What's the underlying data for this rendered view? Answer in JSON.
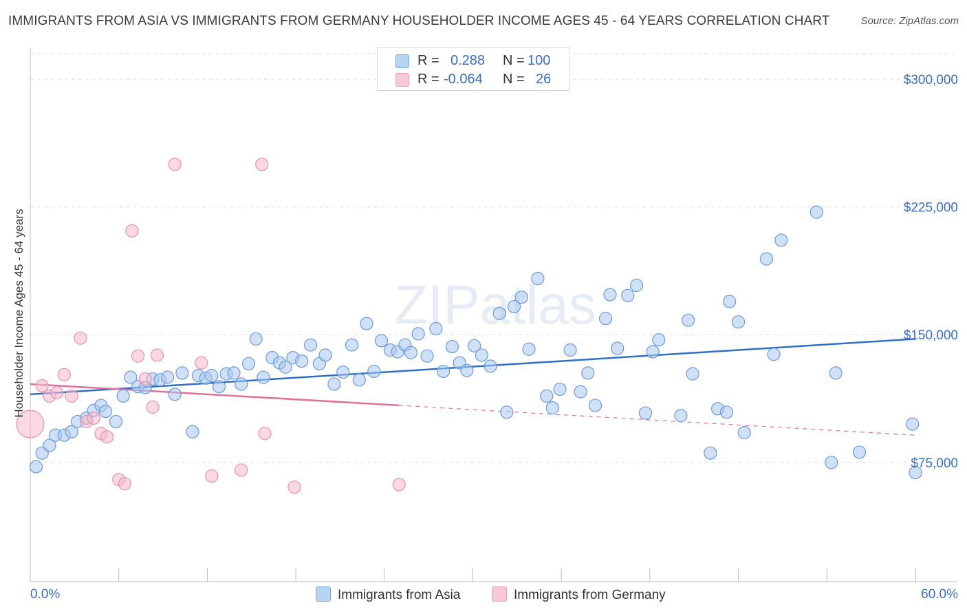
{
  "title": "IMMIGRANTS FROM ASIA VS IMMIGRANTS FROM GERMANY HOUSEHOLDER INCOME AGES 45 - 64 YEARS CORRELATION CHART",
  "source": "Source: ZipAtlas.com",
  "watermark": "ZIPatlas",
  "legend_top": {
    "asia": {
      "r_label": "R =",
      "r_value": "0.288",
      "n_label": "N =",
      "n_value": "100"
    },
    "germany": {
      "r_label": "R =",
      "r_value": "-0.064",
      "n_label": "N =",
      "n_value": "26"
    }
  },
  "colors": {
    "asia_fill": "#a9c8f0",
    "asia_stroke": "#6b9ad8",
    "asia_line": "#2f6fc6",
    "germany_fill": "#f7b8cb",
    "germany_stroke": "#e891ad",
    "germany_line": "#e0709a",
    "axis_text": "#3a6fc4",
    "grid": "#dddddd"
  },
  "chart_data": {
    "type": "scatter",
    "title": "IMMIGRANTS FROM ASIA VS IMMIGRANTS FROM GERMANY HOUSEHOLDER INCOME AGES 45 - 64 YEARS CORRELATION CHART",
    "xlabel": "",
    "ylabel": "Householder Income Ages 45 - 64 years",
    "xlim": [
      0,
      60
    ],
    "ylim": [
      5000,
      315000
    ],
    "x_tick_labels": [
      "0.0%",
      "60.0%"
    ],
    "y_ticks": [
      75000,
      150000,
      225000,
      300000
    ],
    "y_tick_labels": [
      "$75,000",
      "$150,000",
      "$225,000",
      "$300,000"
    ],
    "grid": true,
    "legend_position": "bottom",
    "series": [
      {
        "name": "Immigrants from Asia",
        "r": 0.288,
        "n": 100,
        "trend": {
          "x": [
            0,
            60
          ],
          "y": [
            115000,
            147500
          ],
          "dashed_from": null
        },
        "points": [
          [
            0.4,
            72500
          ],
          [
            0.8,
            80500
          ],
          [
            1.3,
            85000
          ],
          [
            1.7,
            91000
          ],
          [
            2.3,
            91000
          ],
          [
            2.8,
            93000
          ],
          [
            3.2,
            99000
          ],
          [
            3.8,
            101000
          ],
          [
            4.3,
            105500
          ],
          [
            4.8,
            108500
          ],
          [
            5.1,
            105000
          ],
          [
            5.8,
            99000
          ],
          [
            6.3,
            114000
          ],
          [
            6.8,
            125000
          ],
          [
            7.3,
            119500
          ],
          [
            7.8,
            119000
          ],
          [
            8.3,
            124000
          ],
          [
            8.8,
            123500
          ],
          [
            9.3,
            125000
          ],
          [
            9.8,
            115000
          ],
          [
            10.3,
            127500
          ],
          [
            11.0,
            93000
          ],
          [
            11.4,
            126000
          ],
          [
            11.9,
            124500
          ],
          [
            12.3,
            126000
          ],
          [
            12.8,
            119500
          ],
          [
            13.3,
            127000
          ],
          [
            13.8,
            127500
          ],
          [
            14.3,
            121000
          ],
          [
            14.8,
            133000
          ],
          [
            15.3,
            147500
          ],
          [
            15.8,
            125000
          ],
          [
            16.4,
            136500
          ],
          [
            16.9,
            133500
          ],
          [
            17.3,
            131000
          ],
          [
            17.8,
            136500
          ],
          [
            18.4,
            134500
          ],
          [
            19.0,
            144000
          ],
          [
            19.6,
            133000
          ],
          [
            20.0,
            138000
          ],
          [
            20.6,
            121000
          ],
          [
            21.2,
            128000
          ],
          [
            21.8,
            144000
          ],
          [
            22.3,
            123500
          ],
          [
            22.8,
            156500
          ],
          [
            23.3,
            128500
          ],
          [
            23.8,
            146500
          ],
          [
            24.4,
            141000
          ],
          [
            24.9,
            140000
          ],
          [
            25.4,
            144000
          ],
          [
            25.8,
            139500
          ],
          [
            26.3,
            150500
          ],
          [
            26.9,
            137500
          ],
          [
            27.5,
            153500
          ],
          [
            28.0,
            128500
          ],
          [
            28.6,
            143000
          ],
          [
            29.1,
            133500
          ],
          [
            29.6,
            129000
          ],
          [
            30.1,
            143500
          ],
          [
            30.6,
            138000
          ],
          [
            31.2,
            131500
          ],
          [
            31.8,
            162500
          ],
          [
            32.3,
            104500
          ],
          [
            32.8,
            166500
          ],
          [
            33.3,
            172000
          ],
          [
            33.8,
            141500
          ],
          [
            34.4,
            183000
          ],
          [
            35.0,
            114000
          ],
          [
            35.4,
            107000
          ],
          [
            35.9,
            118000
          ],
          [
            36.6,
            141000
          ],
          [
            37.3,
            116500
          ],
          [
            37.8,
            127500
          ],
          [
            38.3,
            108500
          ],
          [
            39.0,
            159500
          ],
          [
            39.3,
            173500
          ],
          [
            39.8,
            142000
          ],
          [
            40.5,
            173000
          ],
          [
            41.1,
            179000
          ],
          [
            41.7,
            104000
          ],
          [
            42.2,
            140000
          ],
          [
            42.6,
            147000
          ],
          [
            44.1,
            102500
          ],
          [
            44.6,
            158500
          ],
          [
            44.9,
            127000
          ],
          [
            46.1,
            80500
          ],
          [
            46.6,
            106500
          ],
          [
            47.2,
            104500
          ],
          [
            47.4,
            169500
          ],
          [
            48.0,
            157500
          ],
          [
            48.4,
            92500
          ],
          [
            49.9,
            194500
          ],
          [
            50.4,
            138500
          ],
          [
            50.9,
            205500
          ],
          [
            53.3,
            222000
          ],
          [
            54.3,
            75000
          ],
          [
            54.6,
            127500
          ],
          [
            56.2,
            81000
          ],
          [
            59.8,
            97500
          ],
          [
            60.0,
            69000
          ]
        ]
      },
      {
        "name": "Immigrants from Germany",
        "r": -0.064,
        "n": 26,
        "trend": {
          "x": [
            0,
            60
          ],
          "y": [
            121000,
            91000
          ],
          "dashed_from": 25
        },
        "points": [
          [
            0,
            97500
          ],
          [
            0.8,
            120000
          ],
          [
            1.3,
            114000
          ],
          [
            1.8,
            116000
          ],
          [
            2.3,
            126500
          ],
          [
            2.8,
            114000
          ],
          [
            3.4,
            148000
          ],
          [
            3.8,
            99000
          ],
          [
            4.3,
            101000
          ],
          [
            4.8,
            92000
          ],
          [
            5.2,
            90000
          ],
          [
            6.0,
            65000
          ],
          [
            6.4,
            62500
          ],
          [
            6.9,
            211000
          ],
          [
            7.3,
            137500
          ],
          [
            7.8,
            124000
          ],
          [
            8.3,
            107500
          ],
          [
            8.6,
            138000
          ],
          [
            9.8,
            250000
          ],
          [
            11.6,
            133500
          ],
          [
            12.3,
            67000
          ],
          [
            14.3,
            70500
          ],
          [
            15.7,
            250000
          ],
          [
            15.9,
            92000
          ],
          [
            17.9,
            60500
          ],
          [
            25.0,
            62000
          ]
        ]
      }
    ]
  },
  "bottom_legend": {
    "asia_label": "Immigrants from Asia",
    "germany_label": "Immigrants from Germany"
  },
  "axes": {
    "x_left": "0.0%",
    "x_right": "60.0%",
    "y_labels": [
      "$75,000",
      "$150,000",
      "$225,000",
      "$300,000"
    ],
    "ylabel": "Householder Income Ages 45 - 64 years"
  }
}
